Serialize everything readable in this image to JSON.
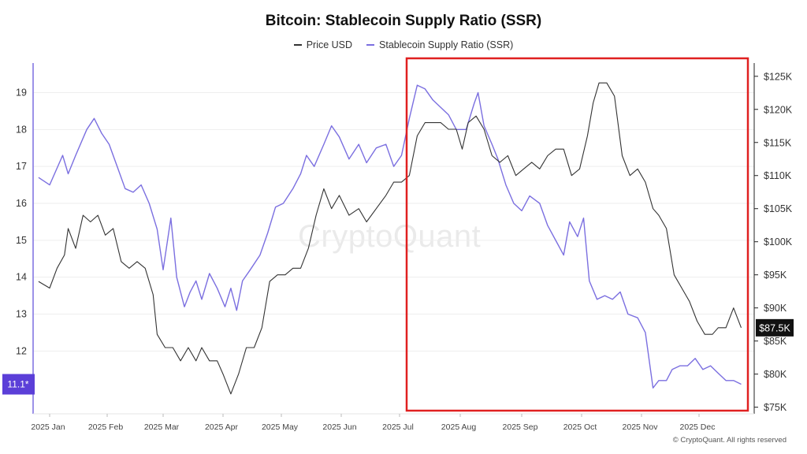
{
  "chart_data": {
    "type": "line",
    "title": "Bitcoin: Stablecoin Supply Ratio (SSR)",
    "legend": [
      {
        "name": "Price USD",
        "color": "#333333"
      },
      {
        "name": "Stablecoin Supply Ratio (SSR)",
        "color": "#7b6fe0"
      }
    ],
    "x_labels": [
      "2025 Jan",
      "2025 Feb",
      "2025 Mar",
      "2025 Apr",
      "2025 May",
      "2025 Jun",
      "2025 Jul",
      "2025 Aug",
      "2025 Sep",
      "2025 Oct",
      "2025 Nov",
      "2025 Dec"
    ],
    "x_range_days": [
      -6,
      364
    ],
    "left_axis": {
      "ticks": [
        "12",
        "13",
        "14",
        "15",
        "16",
        "17",
        "18",
        "19"
      ],
      "range": [
        10.3,
        19.8
      ]
    },
    "right_axis": {
      "ticks": [
        "$75K",
        "$80K",
        "$85K",
        "$90K",
        "$95K",
        "$100K",
        "$105K",
        "$110K",
        "$115K",
        "$120K",
        "$125K"
      ],
      "range": [
        74,
        127
      ]
    },
    "current_left_label": "11.1*",
    "current_right_label": "$87.5K",
    "series": [
      {
        "name": "Stablecoin Supply Ratio (SSR)",
        "axis": "left",
        "points": [
          [
            -6,
            16.7
          ],
          [
            0,
            16.5
          ],
          [
            7,
            17.3
          ],
          [
            10,
            16.8
          ],
          [
            14,
            17.3
          ],
          [
            20,
            18.0
          ],
          [
            24,
            18.3
          ],
          [
            28,
            17.9
          ],
          [
            32,
            17.6
          ],
          [
            36,
            17.0
          ],
          [
            40,
            16.4
          ],
          [
            44,
            16.3
          ],
          [
            48,
            16.5
          ],
          [
            52,
            16.0
          ],
          [
            56,
            15.3
          ],
          [
            59,
            14.2
          ],
          [
            63,
            15.6
          ],
          [
            66,
            14.0
          ],
          [
            70,
            13.2
          ],
          [
            73,
            13.6
          ],
          [
            76,
            13.9
          ],
          [
            79,
            13.4
          ],
          [
            83,
            14.1
          ],
          [
            87,
            13.7
          ],
          [
            91,
            13.2
          ],
          [
            94,
            13.7
          ],
          [
            97,
            13.1
          ],
          [
            100,
            13.9
          ],
          [
            104,
            14.2
          ],
          [
            109,
            14.6
          ],
          [
            113,
            15.2
          ],
          [
            117,
            15.9
          ],
          [
            121,
            16.0
          ],
          [
            126,
            16.4
          ],
          [
            130,
            16.8
          ],
          [
            133,
            17.3
          ],
          [
            137,
            17.0
          ],
          [
            142,
            17.6
          ],
          [
            146,
            18.1
          ],
          [
            150,
            17.8
          ],
          [
            155,
            17.2
          ],
          [
            160,
            17.6
          ],
          [
            164,
            17.1
          ],
          [
            169,
            17.5
          ],
          [
            174,
            17.6
          ],
          [
            178,
            17.0
          ],
          [
            182,
            17.3
          ],
          [
            186,
            18.3
          ],
          [
            190,
            19.2
          ],
          [
            194,
            19.1
          ],
          [
            198,
            18.8
          ],
          [
            202,
            18.6
          ],
          [
            206,
            18.4
          ],
          [
            210,
            18.0
          ],
          [
            215,
            18.0
          ],
          [
            219,
            18.7
          ],
          [
            221,
            19.0
          ],
          [
            224,
            18.1
          ],
          [
            228,
            17.6
          ],
          [
            231,
            17.2
          ],
          [
            235,
            16.5
          ],
          [
            239,
            16.0
          ],
          [
            243,
            15.8
          ],
          [
            247,
            16.2
          ],
          [
            252,
            16.0
          ],
          [
            256,
            15.4
          ],
          [
            261,
            14.9
          ],
          [
            264,
            14.6
          ],
          [
            267,
            15.5
          ],
          [
            271,
            15.1
          ],
          [
            274,
            15.6
          ],
          [
            277,
            13.9
          ],
          [
            281,
            13.4
          ],
          [
            285,
            13.5
          ],
          [
            289,
            13.4
          ],
          [
            293,
            13.6
          ],
          [
            297,
            13.0
          ],
          [
            302,
            12.9
          ],
          [
            306,
            12.5
          ],
          [
            310,
            11.0
          ],
          [
            313,
            11.2
          ],
          [
            317,
            11.2
          ],
          [
            320,
            11.5
          ],
          [
            324,
            11.6
          ],
          [
            328,
            11.6
          ],
          [
            332,
            11.8
          ],
          [
            336,
            11.5
          ],
          [
            340,
            11.6
          ],
          [
            344,
            11.4
          ],
          [
            348,
            11.2
          ],
          [
            352,
            11.2
          ],
          [
            356,
            11.1
          ]
        ]
      },
      {
        "name": "Price USD",
        "axis": "right",
        "points": [
          [
            -6,
            94
          ],
          [
            0,
            93
          ],
          [
            4,
            96
          ],
          [
            8,
            98
          ],
          [
            10,
            102
          ],
          [
            14,
            99
          ],
          [
            18,
            104
          ],
          [
            22,
            103
          ],
          [
            26,
            104
          ],
          [
            30,
            101
          ],
          [
            34,
            102
          ],
          [
            38,
            97
          ],
          [
            42,
            96
          ],
          [
            46,
            97
          ],
          [
            50,
            96
          ],
          [
            54,
            92
          ],
          [
            56,
            86
          ],
          [
            60,
            84
          ],
          [
            64,
            84
          ],
          [
            68,
            82
          ],
          [
            72,
            84
          ],
          [
            76,
            82
          ],
          [
            79,
            84
          ],
          [
            83,
            82
          ],
          [
            87,
            82
          ],
          [
            90,
            80
          ],
          [
            94,
            77
          ],
          [
            98,
            80
          ],
          [
            102,
            84
          ],
          [
            106,
            84
          ],
          [
            110,
            87
          ],
          [
            114,
            94
          ],
          [
            118,
            95
          ],
          [
            122,
            95
          ],
          [
            126,
            96
          ],
          [
            130,
            96
          ],
          [
            134,
            99
          ],
          [
            138,
            104
          ],
          [
            142,
            108
          ],
          [
            146,
            105
          ],
          [
            150,
            107
          ],
          [
            155,
            104
          ],
          [
            160,
            105
          ],
          [
            164,
            103
          ],
          [
            169,
            105
          ],
          [
            174,
            107
          ],
          [
            178,
            109
          ],
          [
            182,
            109
          ],
          [
            186,
            110
          ],
          [
            190,
            116
          ],
          [
            194,
            118
          ],
          [
            198,
            118
          ],
          [
            202,
            118
          ],
          [
            206,
            117
          ],
          [
            210,
            117
          ],
          [
            213,
            114
          ],
          [
            216,
            118
          ],
          [
            220,
            119
          ],
          [
            224,
            117
          ],
          [
            228,
            113
          ],
          [
            232,
            112
          ],
          [
            236,
            113
          ],
          [
            240,
            110
          ],
          [
            244,
            111
          ],
          [
            248,
            112
          ],
          [
            252,
            111
          ],
          [
            256,
            113
          ],
          [
            260,
            114
          ],
          [
            264,
            114
          ],
          [
            268,
            110
          ],
          [
            272,
            111
          ],
          [
            276,
            116
          ],
          [
            279,
            121
          ],
          [
            282,
            124
          ],
          [
            286,
            124
          ],
          [
            290,
            122
          ],
          [
            294,
            113
          ],
          [
            298,
            110
          ],
          [
            302,
            111
          ],
          [
            306,
            109
          ],
          [
            310,
            105
          ],
          [
            313,
            104
          ],
          [
            317,
            102
          ],
          [
            321,
            95
          ],
          [
            325,
            93
          ],
          [
            329,
            91
          ],
          [
            333,
            88
          ],
          [
            337,
            86
          ],
          [
            341,
            86
          ],
          [
            344,
            87
          ],
          [
            348,
            87
          ],
          [
            352,
            90
          ],
          [
            356,
            87
          ]
        ]
      }
    ]
  },
  "watermark": "CryptoQuant",
  "copyright": "© CryptoQuant. All rights reserved",
  "colors": {
    "price": "#333333",
    "ssr": "#7b6fe0",
    "highlight": "#e02020",
    "badge": "#5b3fd8",
    "price_badge": "#111111"
  }
}
